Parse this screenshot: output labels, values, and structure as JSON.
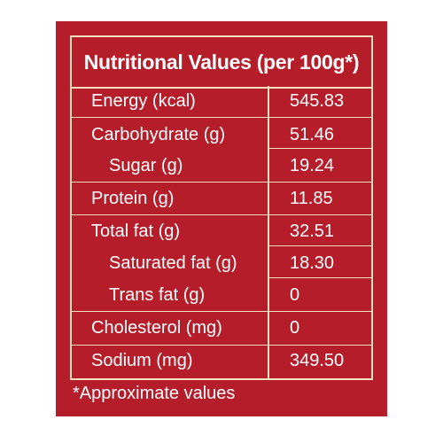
{
  "title": "Nutritional Values (per 100g*)",
  "rows": [
    {
      "label": "Energy (kcal)",
      "value": "545.83"
    },
    {
      "label": "Carbohydrate (g)",
      "value": "51.46"
    },
    {
      "label": "Sugar (g)",
      "value": "19.24"
    },
    {
      "label": "Protein (g)",
      "value": "11.85"
    },
    {
      "label": "Total fat (g)",
      "value": "32.51"
    },
    {
      "label": "Saturated fat (g)",
      "value": "18.30"
    },
    {
      "label": "Trans fat (g)",
      "value": "0"
    },
    {
      "label": "Cholesterol (mg)",
      "value": "0"
    },
    {
      "label": "Sodium (mg)",
      "value": "349.50"
    }
  ],
  "footnote": "*Approximate values",
  "colors": {
    "background": "#b51d2a",
    "border": "#f3dfc1",
    "text": "#ffffff"
  }
}
